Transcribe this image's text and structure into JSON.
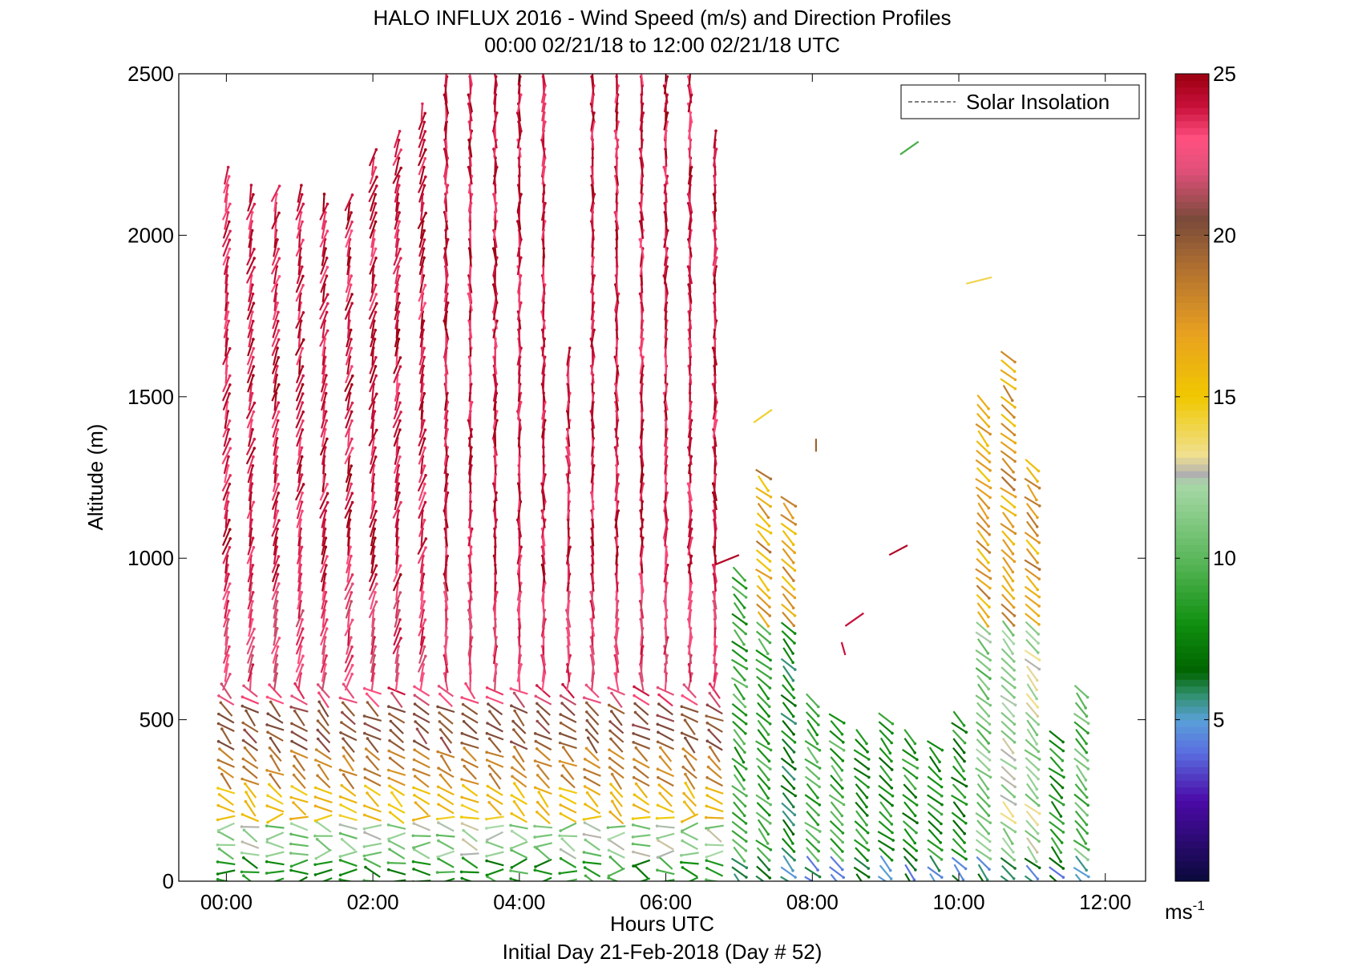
{
  "chart_data": {
    "type": "wind_barb_profile",
    "title_line1": "HALO INFLUX 2016 - Wind Speed (m/s) and Direction Profiles",
    "title_line2": "00:00 02/21/18 to 12:00 02/21/18  UTC",
    "xlabel": "Hours UTC",
    "xlabel2": "Initial Day 21-Feb-2018 (Day # 52)",
    "ylabel": "Altitude (m)",
    "x_ticks": [
      "00:00",
      "02:00",
      "04:00",
      "06:00",
      "08:00",
      "10:00",
      "12:00"
    ],
    "x_tick_hours": [
      0,
      2,
      4,
      6,
      8,
      10,
      12
    ],
    "xlim_hours": [
      -0.65,
      12.55
    ],
    "y_ticks": [
      "0",
      "500",
      "1000",
      "1500",
      "2000",
      "2500"
    ],
    "y_tick_values": [
      0,
      500,
      1000,
      1500,
      2000,
      2500
    ],
    "ylim": [
      0,
      2500
    ],
    "legend": {
      "label": "Solar Insolation",
      "position": "top-right"
    },
    "colorbar": {
      "ticks": [
        "5",
        "10",
        "15",
        "20",
        "25"
      ],
      "tick_values": [
        5,
        10,
        15,
        20,
        25
      ],
      "range": [
        0,
        25
      ],
      "unit": "ms",
      "unit_exp": "-1",
      "colors": [
        {
          "v": 0,
          "c": "#0a0a3a"
        },
        {
          "v": 2.5,
          "c": "#4b0aa8"
        },
        {
          "v": 4.0,
          "c": "#5a6fe0"
        },
        {
          "v": 5.0,
          "c": "#5aa0d8"
        },
        {
          "v": 5.8,
          "c": "#2f8f6a"
        },
        {
          "v": 6.5,
          "c": "#006400"
        },
        {
          "v": 8.0,
          "c": "#109010"
        },
        {
          "v": 10.0,
          "c": "#5cb85c"
        },
        {
          "v": 12.3,
          "c": "#a8d8a8"
        },
        {
          "v": 12.6,
          "c": "#b0b0b0"
        },
        {
          "v": 13.2,
          "c": "#f0e090"
        },
        {
          "v": 15.0,
          "c": "#f0c800"
        },
        {
          "v": 17.0,
          "c": "#e8a020"
        },
        {
          "v": 19.0,
          "c": "#b07030"
        },
        {
          "v": 20.5,
          "c": "#7a4a3a"
        },
        {
          "v": 22.0,
          "c": "#e0507a"
        },
        {
          "v": 23.0,
          "c": "#ff5080"
        },
        {
          "v": 24.0,
          "c": "#c8103a"
        },
        {
          "v": 25.0,
          "c": "#9a0010"
        }
      ]
    },
    "profiles": [
      {
        "t": 0.0,
        "top": 2200,
        "dir": 245
      },
      {
        "t": 0.33,
        "top": 2150,
        "dir": 245
      },
      {
        "t": 0.67,
        "top": 2150,
        "dir": 245
      },
      {
        "t": 1.0,
        "top": 2150,
        "dir": 245
      },
      {
        "t": 1.33,
        "top": 2100,
        "dir": 245
      },
      {
        "t": 1.67,
        "top": 2100,
        "dir": 245
      },
      {
        "t": 2.0,
        "top": 2250,
        "dir": 245
      },
      {
        "t": 2.33,
        "top": 2300,
        "dir": 245
      },
      {
        "t": 2.67,
        "top": 2400,
        "dir": 245
      },
      {
        "t": 3.0,
        "top": 2500,
        "dir": 240
      },
      {
        "t": 3.33,
        "top": 2500,
        "dir": 240
      },
      {
        "t": 3.67,
        "top": 2500,
        "dir": 240
      },
      {
        "t": 4.0,
        "top": 2500,
        "dir": 240
      },
      {
        "t": 4.33,
        "top": 2500,
        "dir": 240
      },
      {
        "t": 4.67,
        "top": 1650,
        "dir": 240
      },
      {
        "t": 5.0,
        "top": 2500,
        "dir": 240
      },
      {
        "t": 5.33,
        "top": 2500,
        "dir": 240
      },
      {
        "t": 5.67,
        "top": 2500,
        "dir": 240
      },
      {
        "t": 6.0,
        "top": 2500,
        "dir": 240
      },
      {
        "t": 6.33,
        "top": 2500,
        "dir": 240
      },
      {
        "t": 6.67,
        "top": 2300,
        "dir": 240
      }
    ],
    "sparse_segments": [
      {
        "x1": 6.67,
        "y1": 980,
        "x2": 7.0,
        "y2": 1010,
        "spd": 24.5
      },
      {
        "x1": 7.2,
        "y1": 1420,
        "x2": 7.45,
        "y2": 1460,
        "spd": 14.5
      },
      {
        "x1": 9.05,
        "y1": 1010,
        "x2": 9.3,
        "y2": 1040,
        "spd": 24.5
      },
      {
        "x1": 9.2,
        "y1": 2250,
        "x2": 9.45,
        "y2": 2290,
        "spd": 9.5
      },
      {
        "x1": 10.1,
        "y1": 1850,
        "x2": 10.45,
        "y2": 1870,
        "spd": 14.0
      },
      {
        "x1": 8.45,
        "y1": 790,
        "x2": 8.7,
        "y2": 830,
        "spd": 24.0
      },
      {
        "x1": 8.4,
        "y1": 740,
        "x2": 8.45,
        "y2": 700,
        "spd": 24.0
      },
      {
        "x1": 8.05,
        "y1": 1330,
        "x2": 8.05,
        "y2": 1370,
        "spd": 19.5
      }
    ]
  }
}
